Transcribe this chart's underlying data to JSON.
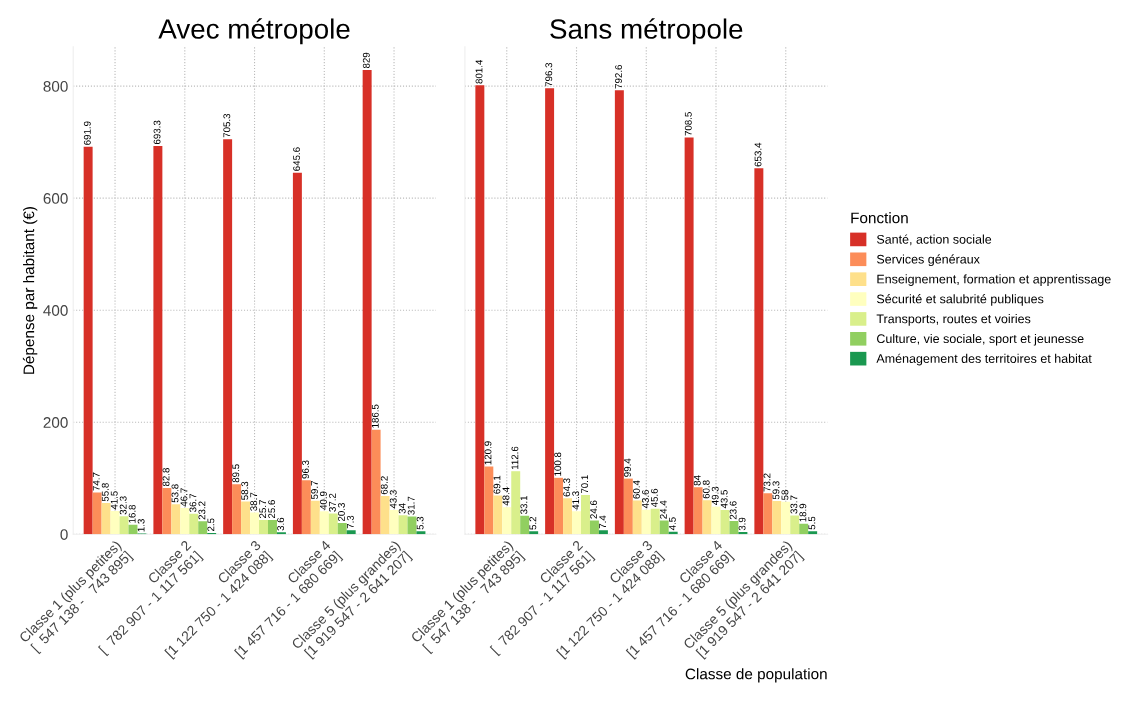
{
  "chart_data": [
    {
      "type": "bar",
      "title": "Avec métropole",
      "ylabel": "Dépense par habitant (€)",
      "categories": [
        "Classe 1 (plus petites)\n[  547 138 -   743 895]",
        "Classe 2\n[  782 907 - 1 117 561]",
        "Classe 3\n[1 122 750 - 1 424 088]",
        "Classe 4\n[1 457 716 - 1 680 669]",
        "Classe 5 (plus grandes)\n[1 919 547 - 2 641 207]"
      ],
      "series": [
        {
          "name": "Santé, action sociale",
          "color": "#d73027",
          "values": [
            691.9,
            693.3,
            705.3,
            645.6,
            829
          ]
        },
        {
          "name": "Services généraux",
          "color": "#fc8d59",
          "values": [
            74.7,
            82.8,
            89.5,
            96.3,
            186.5
          ]
        },
        {
          "name": "Enseignement, formation et apprentissage",
          "color": "#fee08b",
          "values": [
            55.8,
            53.8,
            58.3,
            59.7,
            68.2
          ]
        },
        {
          "name": "Sécurité et salubrité publiques",
          "color": "#ffffbf",
          "values": [
            41.5,
            46.7,
            38.7,
            40.9,
            43.3
          ]
        },
        {
          "name": "Transports, routes et voiries",
          "color": "#d9ef8b",
          "values": [
            32.3,
            36.7,
            25.7,
            37.2,
            34.0
          ]
        },
        {
          "name": "Culture, vie sociale, sport et jeunesse",
          "color": "#91cf60",
          "values": [
            16.8,
            23.2,
            25.6,
            20.3,
            31.7
          ]
        },
        {
          "name": "Aménagement des territoires et habitat",
          "color": "#1a9850",
          "values": [
            1.3,
            2.5,
            3.6,
            7.3,
            5.3
          ]
        }
      ],
      "legend_title": "Fonction",
      "legend": "right",
      "ylim": [
        0,
        870
      ],
      "yticks": [
        0,
        200,
        400,
        600,
        800
      ],
      "grid": true,
      "data_labels": true
    },
    {
      "type": "bar",
      "title": "Sans métropole",
      "xlabel": "Classe de population",
      "tick_labels": "x",
      "categories": [
        "Classe 1 (plus petites)\n[  547 138 -   743 895]",
        "Classe 2\n[  782 907 - 1 117 561]",
        "Classe 3\n[1 122 750 - 1 424 088]",
        "Classe 4\n[1 457 716 - 1 680 669]",
        "Classe 5 (plus grandes)\n[1 919 547 - 2 641 207]"
      ],
      "series": [
        {
          "color": "#d73027",
          "values": [
            801.4,
            796.3,
            792.6,
            708.5,
            653.4
          ]
        },
        {
          "color": "#fc8d59",
          "values": [
            120.9,
            100.8,
            99.4,
            84,
            73.2
          ]
        },
        {
          "color": "#fee08b",
          "values": [
            69.1,
            64.3,
            60.4,
            60.8,
            59.3
          ]
        },
        {
          "color": "#ffffbf",
          "values": [
            48.4,
            41.3,
            43.6,
            49.3,
            58.0
          ]
        },
        {
          "color": "#d9ef8b",
          "values": [
            112.6,
            70.1,
            45.6,
            43.5,
            33.7
          ]
        },
        {
          "color": "#91cf60",
          "values": [
            33.1,
            24.6,
            24.4,
            23.6,
            18.9
          ]
        },
        {
          "color": "#1a9850",
          "values": [
            5.2,
            7.4,
            4.5,
            3.9,
            5.5
          ]
        }
      ],
      "ylim": [
        0,
        870
      ],
      "yticks": [
        0,
        200,
        400,
        600,
        800
      ],
      "grid": true,
      "data_labels": true
    }
  ]
}
